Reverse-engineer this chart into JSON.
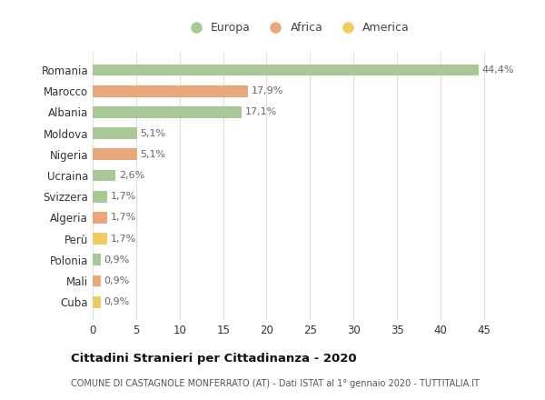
{
  "categories": [
    "Romania",
    "Marocco",
    "Albania",
    "Moldova",
    "Nigeria",
    "Ucraina",
    "Svizzera",
    "Algeria",
    "Perù",
    "Polonia",
    "Mali",
    "Cuba"
  ],
  "values": [
    44.4,
    17.9,
    17.1,
    5.1,
    5.1,
    2.6,
    1.7,
    1.7,
    1.7,
    0.9,
    0.9,
    0.9
  ],
  "labels": [
    "44,4%",
    "17,9%",
    "17,1%",
    "5,1%",
    "5,1%",
    "2,6%",
    "1,7%",
    "1,7%",
    "1,7%",
    "0,9%",
    "0,9%",
    "0,9%"
  ],
  "continents": [
    "Europa",
    "Africa",
    "Europa",
    "Europa",
    "Africa",
    "Europa",
    "Europa",
    "Africa",
    "America",
    "Europa",
    "Africa",
    "America"
  ],
  "colors": {
    "Europa": "#a8c896",
    "Africa": "#e8a878",
    "America": "#f0cc60"
  },
  "title": "Cittadini Stranieri per Cittadinanza - 2020",
  "subtitle": "COMUNE DI CASTAGNOLE MONFERRATO (AT) - Dati ISTAT al 1° gennaio 2020 - TUTTITALIA.IT",
  "xlim": [
    0,
    47
  ],
  "xticks": [
    0,
    5,
    10,
    15,
    20,
    25,
    30,
    35,
    40,
    45
  ],
  "background_color": "#ffffff",
  "grid_color": "#e0e0e0",
  "label_color": "#666666",
  "title_color": "#111111",
  "subtitle_color": "#555555"
}
